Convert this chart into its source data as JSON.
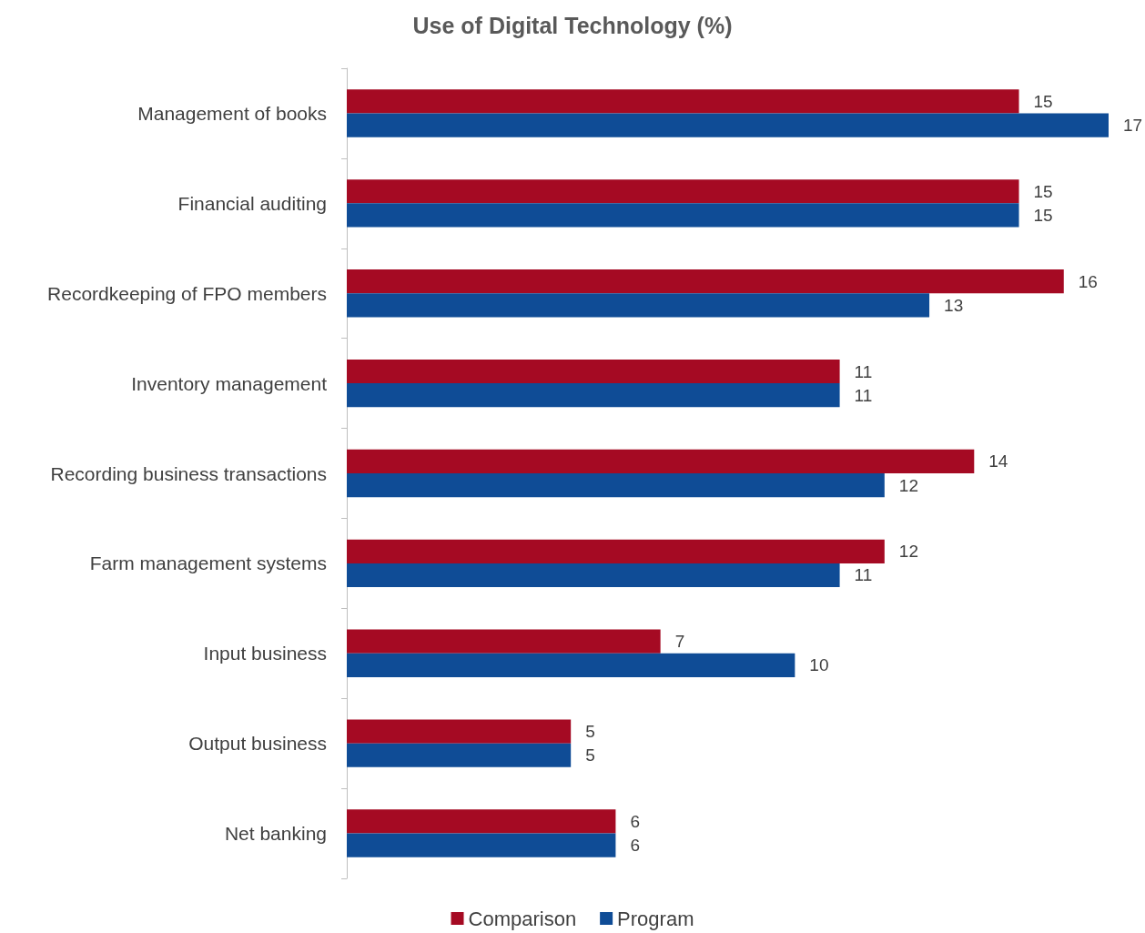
{
  "chart_data": {
    "type": "bar",
    "orientation": "horizontal",
    "title": "Use of Digital Technology (%)",
    "categories": [
      "Management of books",
      "Financial auditing",
      "Recordkeeping of FPO members",
      "Inventory management",
      "Recording business transactions",
      "Farm management systems",
      "Input business",
      "Output business",
      "Net banking"
    ],
    "series": [
      {
        "name": "Comparison",
        "color": "#a50a23",
        "values": [
          15,
          15,
          16,
          11,
          14,
          12,
          7,
          5,
          6
        ]
      },
      {
        "name": "Program",
        "color": "#0f4c96",
        "values": [
          17,
          15,
          13,
          11,
          12,
          11,
          10,
          5,
          6
        ]
      }
    ],
    "data_labels": true,
    "legend": "bottom",
    "grid": false
  }
}
